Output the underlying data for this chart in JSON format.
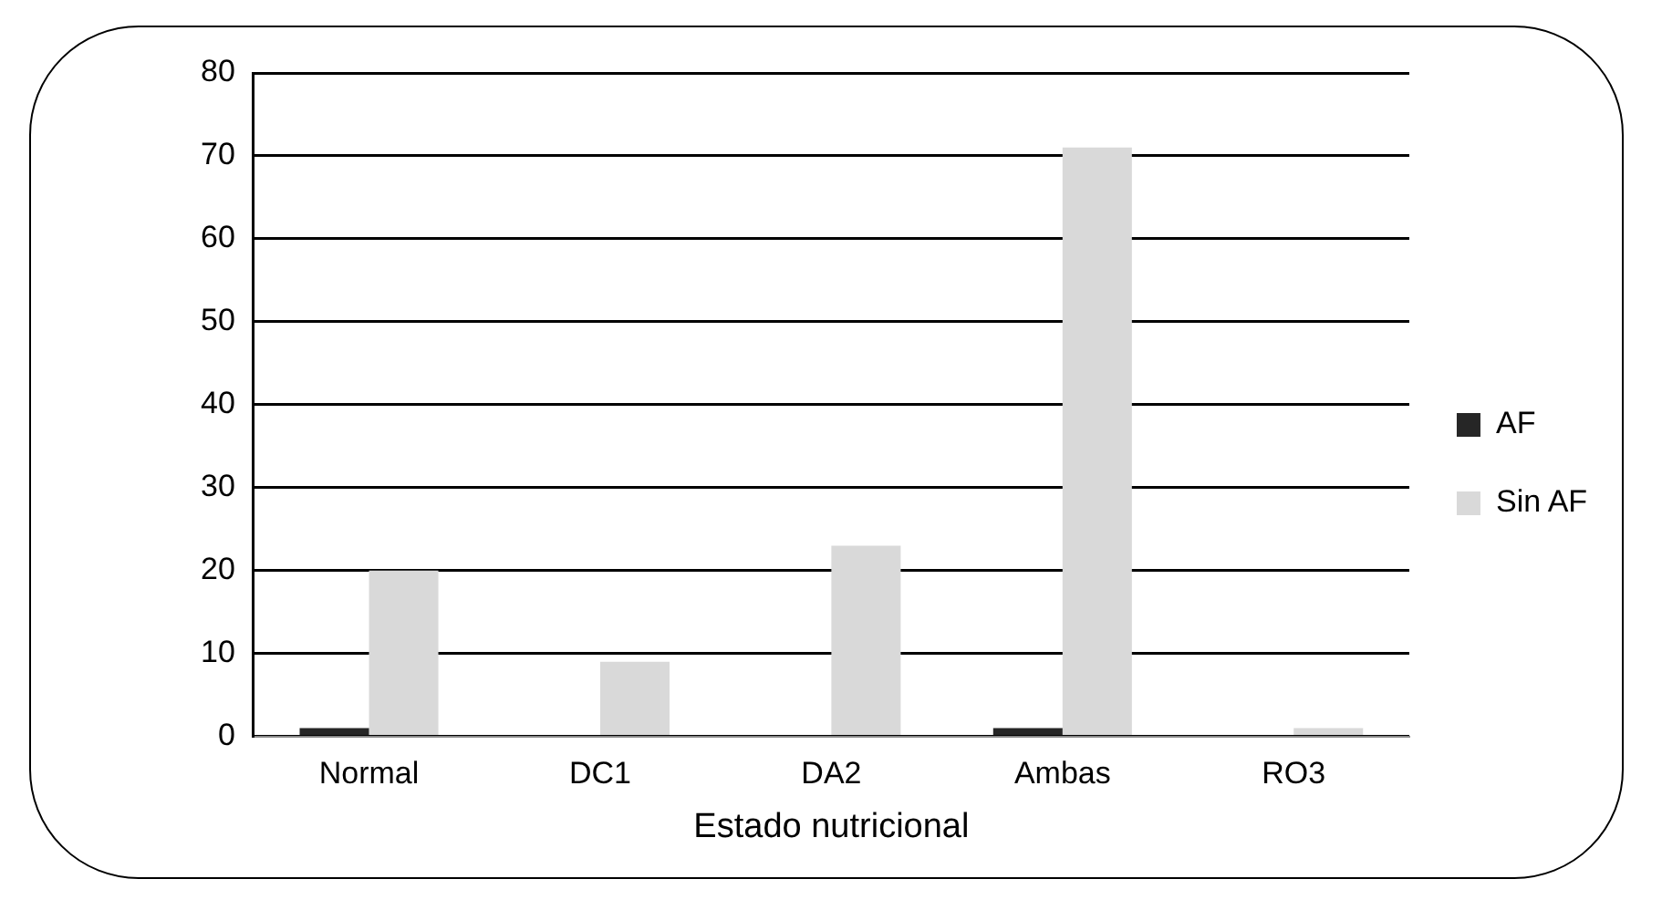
{
  "chart_data": {
    "type": "bar",
    "xlabel": "Estado nutricional",
    "categories": [
      "Normal",
      "DC1",
      "DA2",
      "Ambas",
      "RO3"
    ],
    "series": [
      {
        "name": "AF",
        "color": "#262626",
        "values": [
          1,
          0,
          0,
          1,
          0
        ]
      },
      {
        "name": "Sin AF",
        "color": "#d9d9d9",
        "values": [
          20,
          9,
          23,
          71,
          1
        ]
      }
    ],
    "ylim": [
      0,
      80
    ],
    "yticks": [
      0,
      10,
      20,
      30,
      40,
      50,
      60,
      70,
      80
    ],
    "grid": "y",
    "legend": "right"
  }
}
